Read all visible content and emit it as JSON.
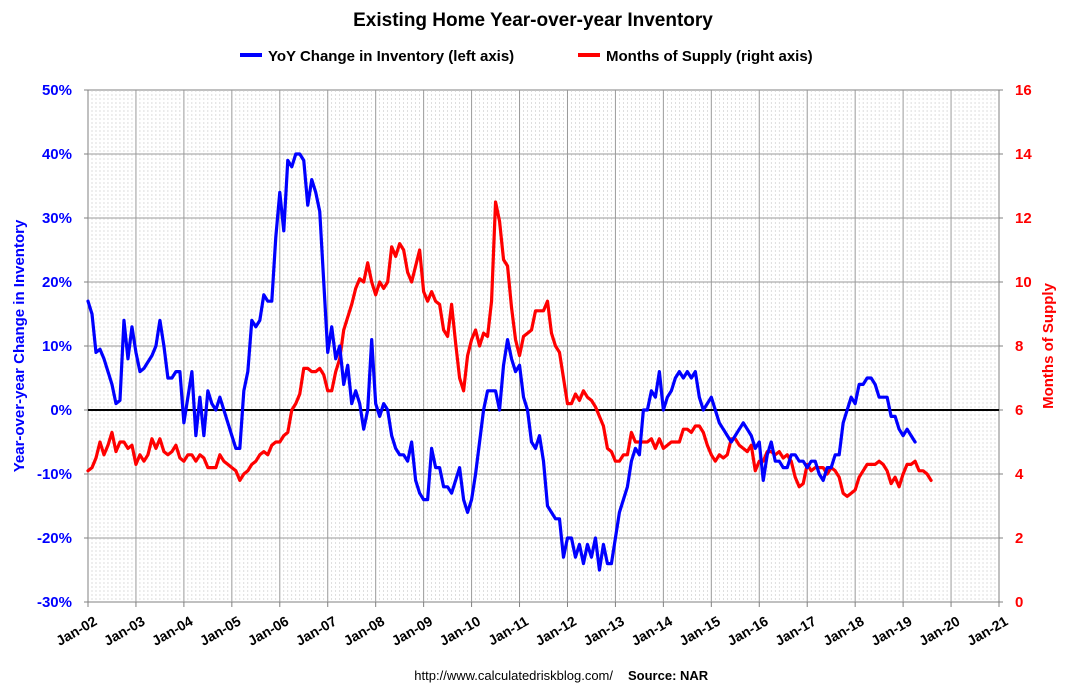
{
  "chart_data": {
    "type": "line",
    "title": "Existing Home Year-over-year Inventory",
    "ylabel_left": "Year-over-year Change in Inventory",
    "ylabel_right": "Months of Supply",
    "xlabel": "",
    "ylim_left": [
      -30,
      50
    ],
    "ylim_right": [
      0,
      16
    ],
    "yticks_left": [
      "-30%",
      "-20%",
      "-10%",
      "0%",
      "10%",
      "20%",
      "30%",
      "40%",
      "50%"
    ],
    "yticks_right": [
      "0",
      "2",
      "4",
      "6",
      "8",
      "10",
      "12",
      "14",
      "16"
    ],
    "xticks": [
      "Jan-02",
      "Jan-03",
      "Jan-04",
      "Jan-05",
      "Jan-06",
      "Jan-07",
      "Jan-08",
      "Jan-09",
      "Jan-10",
      "Jan-11",
      "Jan-12",
      "Jan-13",
      "Jan-14",
      "Jan-15",
      "Jan-16",
      "Jan-17",
      "Jan-18",
      "Jan-19",
      "Jan-20",
      "Jan-21"
    ],
    "grid": true,
    "legend_position": "top-center",
    "series": [
      {
        "name": "YoY Change in Inventory (left axis)",
        "axis": "left",
        "color": "#0000ff",
        "start": "2002-01",
        "frequency": "monthly",
        "values": [
          17,
          15,
          9,
          9.5,
          8,
          6,
          4,
          1,
          1.5,
          14,
          8,
          13,
          9,
          6,
          6.5,
          7.5,
          8.5,
          10,
          14,
          10,
          5,
          5,
          6,
          6,
          -2,
          2,
          6,
          -4,
          2,
          -4,
          3,
          1,
          0,
          2,
          0,
          -2,
          -4,
          -6,
          -6,
          3,
          6,
          14,
          13,
          14,
          18,
          17,
          17,
          27,
          34,
          28,
          39,
          38,
          40,
          40,
          39,
          32,
          36,
          34,
          31,
          20,
          9,
          13,
          8,
          10,
          4,
          7,
          1,
          3,
          1,
          -3,
          0,
          11,
          1,
          -1,
          1,
          0,
          -4,
          -6,
          -7,
          -7,
          -8,
          -5,
          -11,
          -13,
          -14,
          -14,
          -6,
          -9,
          -9,
          -12,
          -12,
          -13,
          -11,
          -9,
          -14,
          -16,
          -14,
          -10,
          -5,
          0,
          3,
          3,
          3,
          0,
          7,
          11,
          8,
          6,
          7,
          2,
          0,
          -5,
          -6,
          -4,
          -8,
          -15,
          -16,
          -17,
          -17,
          -23,
          -20,
          -20,
          -23,
          -21,
          -24,
          -21,
          -23,
          -20,
          -25,
          -21,
          -24,
          -24,
          -20,
          -16,
          -14,
          -12,
          -8,
          -6,
          -7,
          0,
          0,
          3,
          2,
          6,
          0,
          2,
          3,
          5,
          6,
          5,
          6,
          5,
          6,
          2,
          0,
          1,
          2,
          0,
          -2,
          -3,
          -4,
          -5,
          -4,
          -3,
          -2,
          -3,
          -4,
          -6,
          -5,
          -11,
          -7,
          -5,
          -8,
          -8,
          -9,
          -9,
          -7,
          -7,
          -8,
          -8,
          -9,
          -8,
          -8,
          -10,
          -11,
          -9,
          -9,
          -7,
          -7,
          -2,
          0,
          2,
          1,
          4,
          4,
          5,
          5,
          4,
          2,
          2,
          2,
          -1,
          -1,
          -3,
          -4,
          -3,
          -4,
          -5
        ]
      },
      {
        "name": "Months of Supply (right axis)",
        "axis": "right",
        "color": "#ff0000",
        "start": "2002-01",
        "frequency": "monthly",
        "values": [
          4.1,
          4.2,
          4.5,
          5,
          4.6,
          4.9,
          5.3,
          4.7,
          5,
          5,
          4.8,
          4.9,
          4.3,
          4.6,
          4.4,
          4.6,
          5.1,
          4.8,
          5.1,
          4.7,
          4.6,
          4.7,
          4.9,
          4.5,
          4.4,
          4.6,
          4.6,
          4.4,
          4.6,
          4.5,
          4.2,
          4.2,
          4.2,
          4.6,
          4.4,
          4.3,
          4.2,
          4.1,
          3.8,
          4,
          4.1,
          4.3,
          4.4,
          4.6,
          4.7,
          4.6,
          4.9,
          5,
          5,
          5.2,
          5.3,
          6,
          6.2,
          6.5,
          7.3,
          7.3,
          7.2,
          7.2,
          7.3,
          7.1,
          6.6,
          6.6,
          7.2,
          7.6,
          8.5,
          8.9,
          9.3,
          9.8,
          10.1,
          10,
          10.6,
          10,
          9.6,
          10,
          9.8,
          10,
          11.1,
          10.8,
          11.2,
          11,
          10.3,
          10,
          10.5,
          11,
          9.7,
          9.4,
          9.7,
          9.4,
          9.3,
          8.5,
          8.3,
          9.3,
          8.1,
          7,
          6.6,
          7.7,
          8.2,
          8.5,
          8,
          8.4,
          8.3,
          9.4,
          12.5,
          11.9,
          10.7,
          10.5,
          9.2,
          8.2,
          7.7,
          8.3,
          8.4,
          8.5,
          9.1,
          9.1,
          9.1,
          9.4,
          8.4,
          8,
          7.8,
          7,
          6.2,
          6.2,
          6.5,
          6.3,
          6.6,
          6.4,
          6.3,
          6.1,
          5.8,
          5.5,
          4.8,
          4.7,
          4.4,
          4.4,
          4.6,
          4.6,
          5.3,
          5,
          5,
          5,
          5,
          5.1,
          4.8,
          5.1,
          4.8,
          4.9,
          5,
          5,
          5,
          5.4,
          5.4,
          5.3,
          5.5,
          5.5,
          5.3,
          4.9,
          4.6,
          4.4,
          4.6,
          4.5,
          4.6,
          5.1,
          5.1,
          4.9,
          4.8,
          4.7,
          4.9,
          4.1,
          4.4,
          4.4,
          4.7,
          4.7,
          4.6,
          4.7,
          4.5,
          4.6,
          4.4,
          3.9,
          3.6,
          3.7,
          4.3,
          4.1,
          4.2,
          4.2,
          4.2,
          4,
          4.2,
          4.1,
          3.9,
          3.4,
          3.3,
          3.4,
          3.5,
          3.9,
          4.1,
          4.3,
          4.3,
          4.3,
          4.4,
          4.3,
          4.1,
          3.7,
          3.9,
          3.6,
          4,
          4.3,
          4.3,
          4.4,
          4.1,
          4.1,
          4,
          3.8
        ]
      }
    ],
    "source_url": "http://www.calculatedriskblog.com/",
    "source_label": "Source: NAR"
  }
}
